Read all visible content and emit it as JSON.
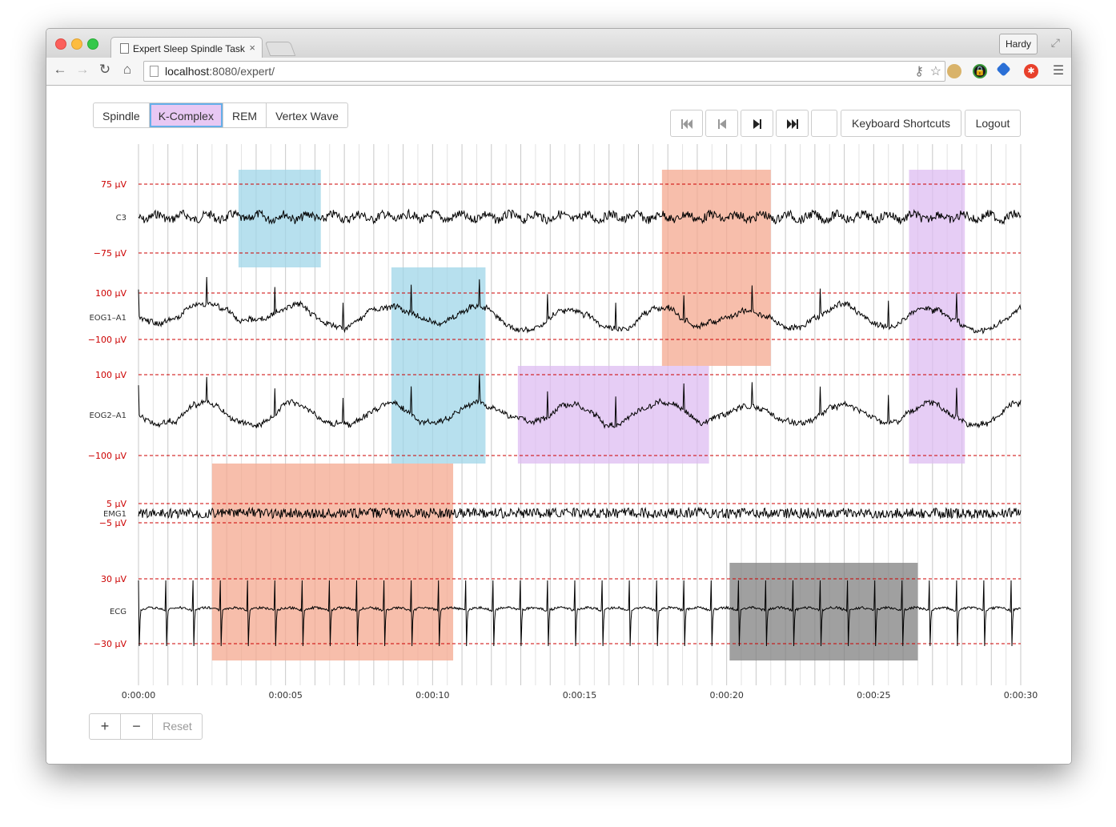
{
  "browser": {
    "tab_title": "Expert Sleep Spindle Task",
    "tab_close": "×",
    "user_name": "Hardy",
    "url_host": "localhost",
    "url_path": ":8080/expert/"
  },
  "annotation_types": [
    {
      "label": "Spindle",
      "color": "#9fd6e8",
      "active": false
    },
    {
      "label": "K-Complex",
      "color": "#f4a88f",
      "active": true
    },
    {
      "label": "REM",
      "color": "#ddbcf2",
      "active": false
    },
    {
      "label": "Vertex Wave",
      "color": "#808080",
      "active": false
    }
  ],
  "controls": {
    "keyboard_shortcuts": "Keyboard Shortcuts",
    "logout": "Logout",
    "reset": "Reset",
    "zoom_in": "+",
    "zoom_out": "−"
  },
  "chart_data": {
    "type": "line",
    "x_unit": "seconds",
    "xlim": [
      0,
      30
    ],
    "x_ticks": [
      "0:00:00",
      "0:00:05",
      "0:00:10",
      "0:00:15",
      "0:00:20",
      "0:00:25",
      "0:00:30"
    ],
    "channels": [
      {
        "name": "C3",
        "upper_label": "75 µV",
        "lower_label": "−75 µV"
      },
      {
        "name": "EOG1–A1",
        "upper_label": "100 µV",
        "lower_label": "−100 µV"
      },
      {
        "name": "EOG2–A1",
        "upper_label": "100 µV",
        "lower_label": "−100 µV"
      },
      {
        "name": "EMG1",
        "upper_label": "5 µV",
        "lower_label": "−5 µV"
      },
      {
        "name": "ECG",
        "upper_label": "30 µV",
        "lower_label": "−30 µV"
      }
    ],
    "annotations": [
      {
        "type": "Spindle",
        "start": 3.4,
        "end": 6.2,
        "channels": [
          "C3"
        ]
      },
      {
        "type": "Spindle",
        "start": 8.6,
        "end": 11.8,
        "channels": [
          "EOG1–A1",
          "EOG2–A1"
        ]
      },
      {
        "type": "K-Complex",
        "start": 17.8,
        "end": 21.5,
        "channels": [
          "C3",
          "EOG1–A1"
        ]
      },
      {
        "type": "K-Complex",
        "start": 2.5,
        "end": 10.7,
        "channels": [
          "EMG1",
          "ECG"
        ]
      },
      {
        "type": "REM",
        "start": 12.9,
        "end": 19.4,
        "channels": [
          "EOG2–A1"
        ]
      },
      {
        "type": "REM",
        "start": 26.2,
        "end": 28.1,
        "channels": [
          "C3",
          "EOG1–A1",
          "EOG2–A1"
        ]
      },
      {
        "type": "Vertex Wave",
        "start": 20.1,
        "end": 26.5,
        "channels": [
          "ECG"
        ]
      }
    ],
    "colors": {
      "threshold": "#cc0000",
      "signal": "#000000",
      "grid": "#cfcfcf"
    }
  }
}
